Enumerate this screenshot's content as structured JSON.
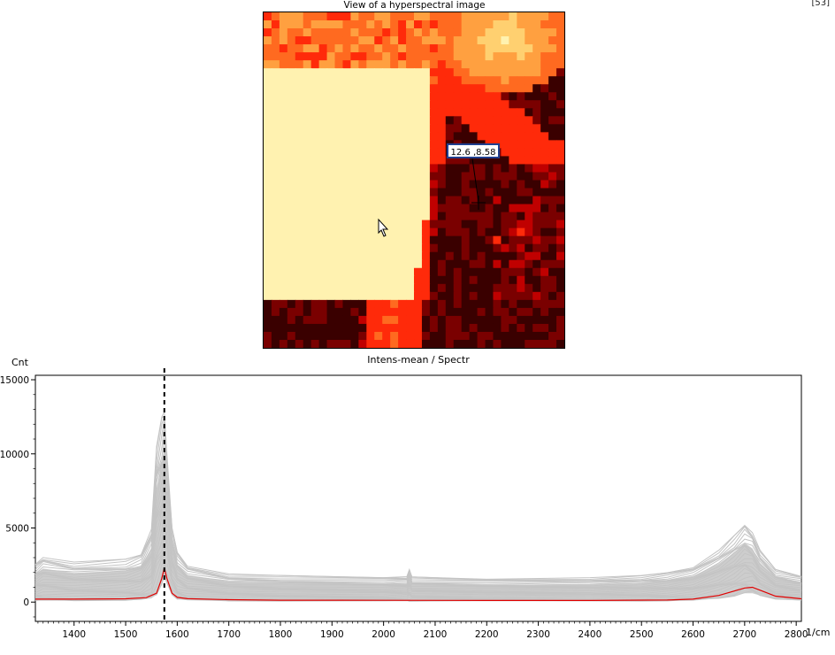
{
  "page_number": "[53]",
  "image_panel": {
    "title": "View of a hyperspectral image",
    "cursor_readout": "12.6 ,8.58",
    "colormap": [
      "#3a0000",
      "#7a0000",
      "#c00000",
      "#ff2a0a",
      "#ff6a20",
      "#ffa040",
      "#ffd070",
      "#fff2b0"
    ]
  },
  "chart_data": {
    "type": "line",
    "title": "Intens-mean / Spectr",
    "ylabel": "Cnt",
    "xlabel": "1/cm",
    "xlim": [
      1325,
      2810
    ],
    "ylim": [
      -1300,
      15300
    ],
    "x_ticks": [
      1400,
      1500,
      1600,
      1700,
      1800,
      1900,
      2000,
      2100,
      2200,
      2300,
      2400,
      2500,
      2600,
      2700,
      2800
    ],
    "y_ticks": [
      0,
      5000,
      10000,
      15000
    ],
    "marker_x": 1575,
    "series": [
      {
        "color": "#e00000",
        "x": [
          1325,
          1400,
          1500,
          1540,
          1560,
          1570,
          1575,
          1580,
          1590,
          1600,
          1620,
          1700,
          1800,
          2000,
          2200,
          2400,
          2550,
          2600,
          2650,
          2680,
          2700,
          2715,
          2730,
          2760,
          2810
        ],
        "values": [
          200,
          200,
          220,
          300,
          600,
          1600,
          2300,
          1600,
          600,
          320,
          230,
          160,
          130,
          120,
          110,
          110,
          140,
          200,
          450,
          750,
          950,
          1000,
          800,
          400,
          220
        ]
      }
    ],
    "envelope": {
      "color": "#c4c4c4",
      "x": [
        1325,
        1340,
        1400,
        1500,
        1530,
        1550,
        1560,
        1570,
        1575,
        1580,
        1590,
        1600,
        1620,
        1700,
        1800,
        2000,
        2045,
        2050,
        2055,
        2200,
        2400,
        2500,
        2550,
        2600,
        2650,
        2680,
        2700,
        2715,
        2730,
        2760,
        2810
      ],
      "upper": [
        2600,
        3100,
        2700,
        2900,
        3300,
        5000,
        10500,
        12500,
        13300,
        10000,
        5000,
        3400,
        2500,
        1900,
        1800,
        1700,
        1750,
        2200,
        1700,
        1600,
        1650,
        1800,
        2000,
        2400,
        3500,
        4500,
        5300,
        4800,
        3500,
        2200,
        1800
      ],
      "lower": [
        100,
        100,
        100,
        120,
        150,
        250,
        500,
        1200,
        1600,
        1200,
        500,
        200,
        120,
        80,
        70,
        60,
        60,
        60,
        60,
        60,
        60,
        70,
        80,
        100,
        250,
        400,
        600,
        600,
        450,
        200,
        100
      ]
    }
  }
}
